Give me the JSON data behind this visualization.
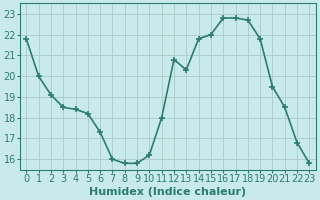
{
  "x": [
    0,
    1,
    2,
    3,
    4,
    5,
    6,
    7,
    8,
    9,
    10,
    11,
    12,
    13,
    14,
    15,
    16,
    17,
    18,
    19,
    20,
    21,
    22,
    23
  ],
  "y": [
    21.8,
    20.0,
    19.1,
    18.5,
    18.4,
    18.2,
    17.3,
    16.0,
    15.8,
    15.8,
    16.2,
    18.0,
    20.8,
    20.3,
    21.8,
    22.0,
    22.8,
    22.8,
    22.7,
    21.8,
    19.5,
    18.5,
    16.8,
    15.8
  ],
  "line_color": "#2d7d6e",
  "bg_color": "#c8eaea",
  "grid_color": "#b0cece",
  "xlabel": "Humidex (Indice chaleur)",
  "ylim": [
    15.5,
    23.5
  ],
  "yticks": [
    16,
    17,
    18,
    19,
    20,
    21,
    22,
    23
  ],
  "xticks": [
    0,
    1,
    2,
    3,
    4,
    5,
    6,
    7,
    8,
    9,
    10,
    11,
    12,
    13,
    14,
    15,
    16,
    17,
    18,
    19,
    20,
    21,
    22,
    23
  ],
  "marker": "+",
  "marker_size": 5,
  "line_width": 1.2,
  "xlabel_fontsize": 8,
  "tick_fontsize": 7,
  "spine_color": "#2d7d6e",
  "axis_color": "#2d7d6e"
}
